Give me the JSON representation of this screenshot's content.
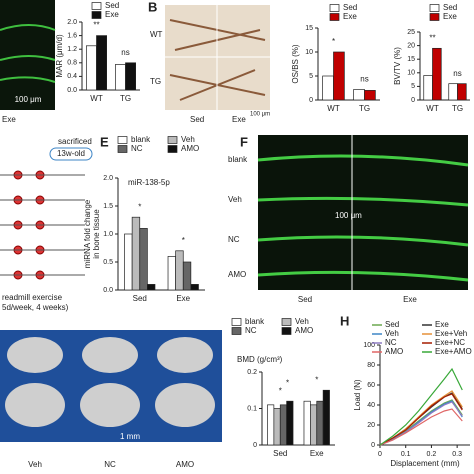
{
  "panels": {
    "letters": [
      "B",
      "E",
      "F",
      "H"
    ],
    "a_labels": [
      "100 μm",
      "Exe"
    ],
    "b_labels": [
      "WT",
      "TG",
      "Sed",
      "Exe",
      "100 μm"
    ],
    "e_labels": [
      "sacrificed",
      "13w-old",
      "readmill exercise",
      "5d/week, 4 weeks)"
    ],
    "f_labels": [
      "blank",
      "Veh",
      "NC",
      "AMO",
      "100 μm",
      "Sed",
      "Exe"
    ],
    "g_labels": [
      "Veh",
      "NC",
      "AMO",
      "1 mm"
    ]
  },
  "chart_data": [
    {
      "type": "bar",
      "ylabel": "MAR (μm/d)",
      "categories": [
        "WT",
        "TG"
      ],
      "series": [
        {
          "name": "Sed",
          "color": "#ffffff",
          "values": [
            1.3,
            0.75
          ]
        },
        {
          "name": "Exe",
          "color": "#111111",
          "values": [
            1.6,
            0.8
          ]
        }
      ],
      "ylim": [
        0,
        2.0
      ],
      "yticks": [
        {
          "value": 0,
          "label": "0.0"
        },
        {
          "value": 0.4,
          "label": "0.4"
        },
        {
          "value": 0.8,
          "label": "0.8"
        },
        {
          "value": 1.2,
          "label": "1.2"
        },
        {
          "value": 1.6,
          "label": "1.6"
        },
        {
          "value": 2.0,
          "label": "2.0"
        }
      ],
      "annotations": [
        "**",
        "ns"
      ]
    },
    {
      "type": "bar",
      "ylabel": "OS/BS (%)",
      "categories": [
        "WT",
        "TG"
      ],
      "series": [
        {
          "name": "Sed",
          "color": "#ffffff",
          "values": [
            5,
            2.2
          ]
        },
        {
          "name": "Exe",
          "color": "#c00000",
          "values": [
            10,
            2
          ]
        }
      ],
      "ylim": [
        0,
        15
      ],
      "yticks": [
        0,
        5,
        10,
        15
      ],
      "annotations": [
        "*",
        "ns"
      ]
    },
    {
      "type": "bar",
      "ylabel": "BV/TV (%)",
      "categories": [
        "WT",
        "TG"
      ],
      "series": [
        {
          "name": "Sed",
          "color": "#ffffff",
          "values": [
            9,
            6
          ]
        },
        {
          "name": "Exe",
          "color": "#c00000",
          "values": [
            19,
            6
          ]
        }
      ],
      "ylim": [
        0,
        25
      ],
      "yticks": [
        0,
        5,
        10,
        15,
        20,
        25
      ],
      "annotations": [
        "**",
        "ns"
      ]
    },
    {
      "type": "bar",
      "ylabel": "miRNA fold change",
      "ylabel2": "in bone tissue",
      "subtitle": "miR-138-5p",
      "categories": [
        "Sed",
        "Exe"
      ],
      "series": [
        {
          "name": "blank",
          "color": "#ffffff",
          "values": [
            1.0,
            0.6
          ]
        },
        {
          "name": "Veh",
          "color": "#bbbbbb",
          "values": [
            1.3,
            0.7
          ]
        },
        {
          "name": "NC",
          "color": "#666666",
          "values": [
            1.1,
            0.5
          ]
        },
        {
          "name": "AMO",
          "color": "#111111",
          "values": [
            0.1,
            0.1
          ]
        }
      ],
      "ylim": [
        0,
        2.0
      ],
      "yticks": [
        {
          "value": 0,
          "label": "0.0"
        },
        {
          "value": 0.5,
          "label": "0.5"
        },
        {
          "value": 1.0,
          "label": "1.0"
        },
        {
          "value": 1.5,
          "label": "1.5"
        },
        {
          "value": 2.0,
          "label": "2.0"
        }
      ],
      "annotations": [
        "*",
        "*"
      ]
    },
    {
      "type": "bar",
      "title": "BMD (g/cm³)",
      "categories": [
        "Sed",
        "Exe"
      ],
      "series": [
        {
          "name": "blank",
          "color": "#ffffff",
          "values": [
            0.11,
            0.12
          ]
        },
        {
          "name": "Veh",
          "color": "#bbbbbb",
          "values": [
            0.1,
            0.11
          ]
        },
        {
          "name": "NC",
          "color": "#666666",
          "values": [
            0.11,
            0.12
          ]
        },
        {
          "name": "AMO",
          "color": "#111111",
          "values": [
            0.12,
            0.15
          ]
        }
      ],
      "ylim": [
        0,
        0.2
      ],
      "yticks": [
        0,
        0.1,
        0.2
      ],
      "annotations": [
        "*",
        "*",
        "*"
      ]
    },
    {
      "type": "line",
      "xlabel": "Displacement (mm)",
      "ylabel": "Load (N)",
      "x": [
        0,
        0.05,
        0.1,
        0.15,
        0.2,
        0.25,
        0.28,
        0.32
      ],
      "series": [
        {
          "name": "Sed",
          "color": "#6aa84f",
          "values": [
            0,
            6,
            14,
            24,
            34,
            42,
            45,
            30
          ]
        },
        {
          "name": "Exe",
          "color": "#333333",
          "values": [
            0,
            7,
            16,
            27,
            38,
            48,
            52,
            36
          ]
        },
        {
          "name": "Veh",
          "color": "#3d85c6",
          "values": [
            0,
            6,
            13,
            23,
            33,
            41,
            44,
            28
          ]
        },
        {
          "name": "Exe+Veh",
          "color": "#e69138",
          "values": [
            0,
            7,
            16,
            28,
            40,
            49,
            54,
            38
          ]
        },
        {
          "name": "NC",
          "color": "#8e7cc3",
          "values": [
            0,
            5,
            13,
            22,
            32,
            40,
            43,
            29
          ]
        },
        {
          "name": "Exe+NC",
          "color": "#a61c00",
          "values": [
            0,
            7,
            15,
            27,
            39,
            48,
            51,
            35
          ]
        },
        {
          "name": "AMO",
          "color": "#e06666",
          "values": [
            0,
            5,
            12,
            20,
            28,
            34,
            36,
            24
          ]
        },
        {
          "name": "Exe+AMO",
          "color": "#38a838",
          "values": [
            0,
            9,
            20,
            34,
            50,
            66,
            76,
            55
          ]
        }
      ],
      "xlim": [
        0,
        0.35
      ],
      "xticks": [
        0,
        0.1,
        0.2,
        0.3
      ],
      "ylim": [
        0,
        100
      ],
      "yticks": [
        0,
        20,
        40,
        60,
        80,
        100
      ]
    }
  ]
}
